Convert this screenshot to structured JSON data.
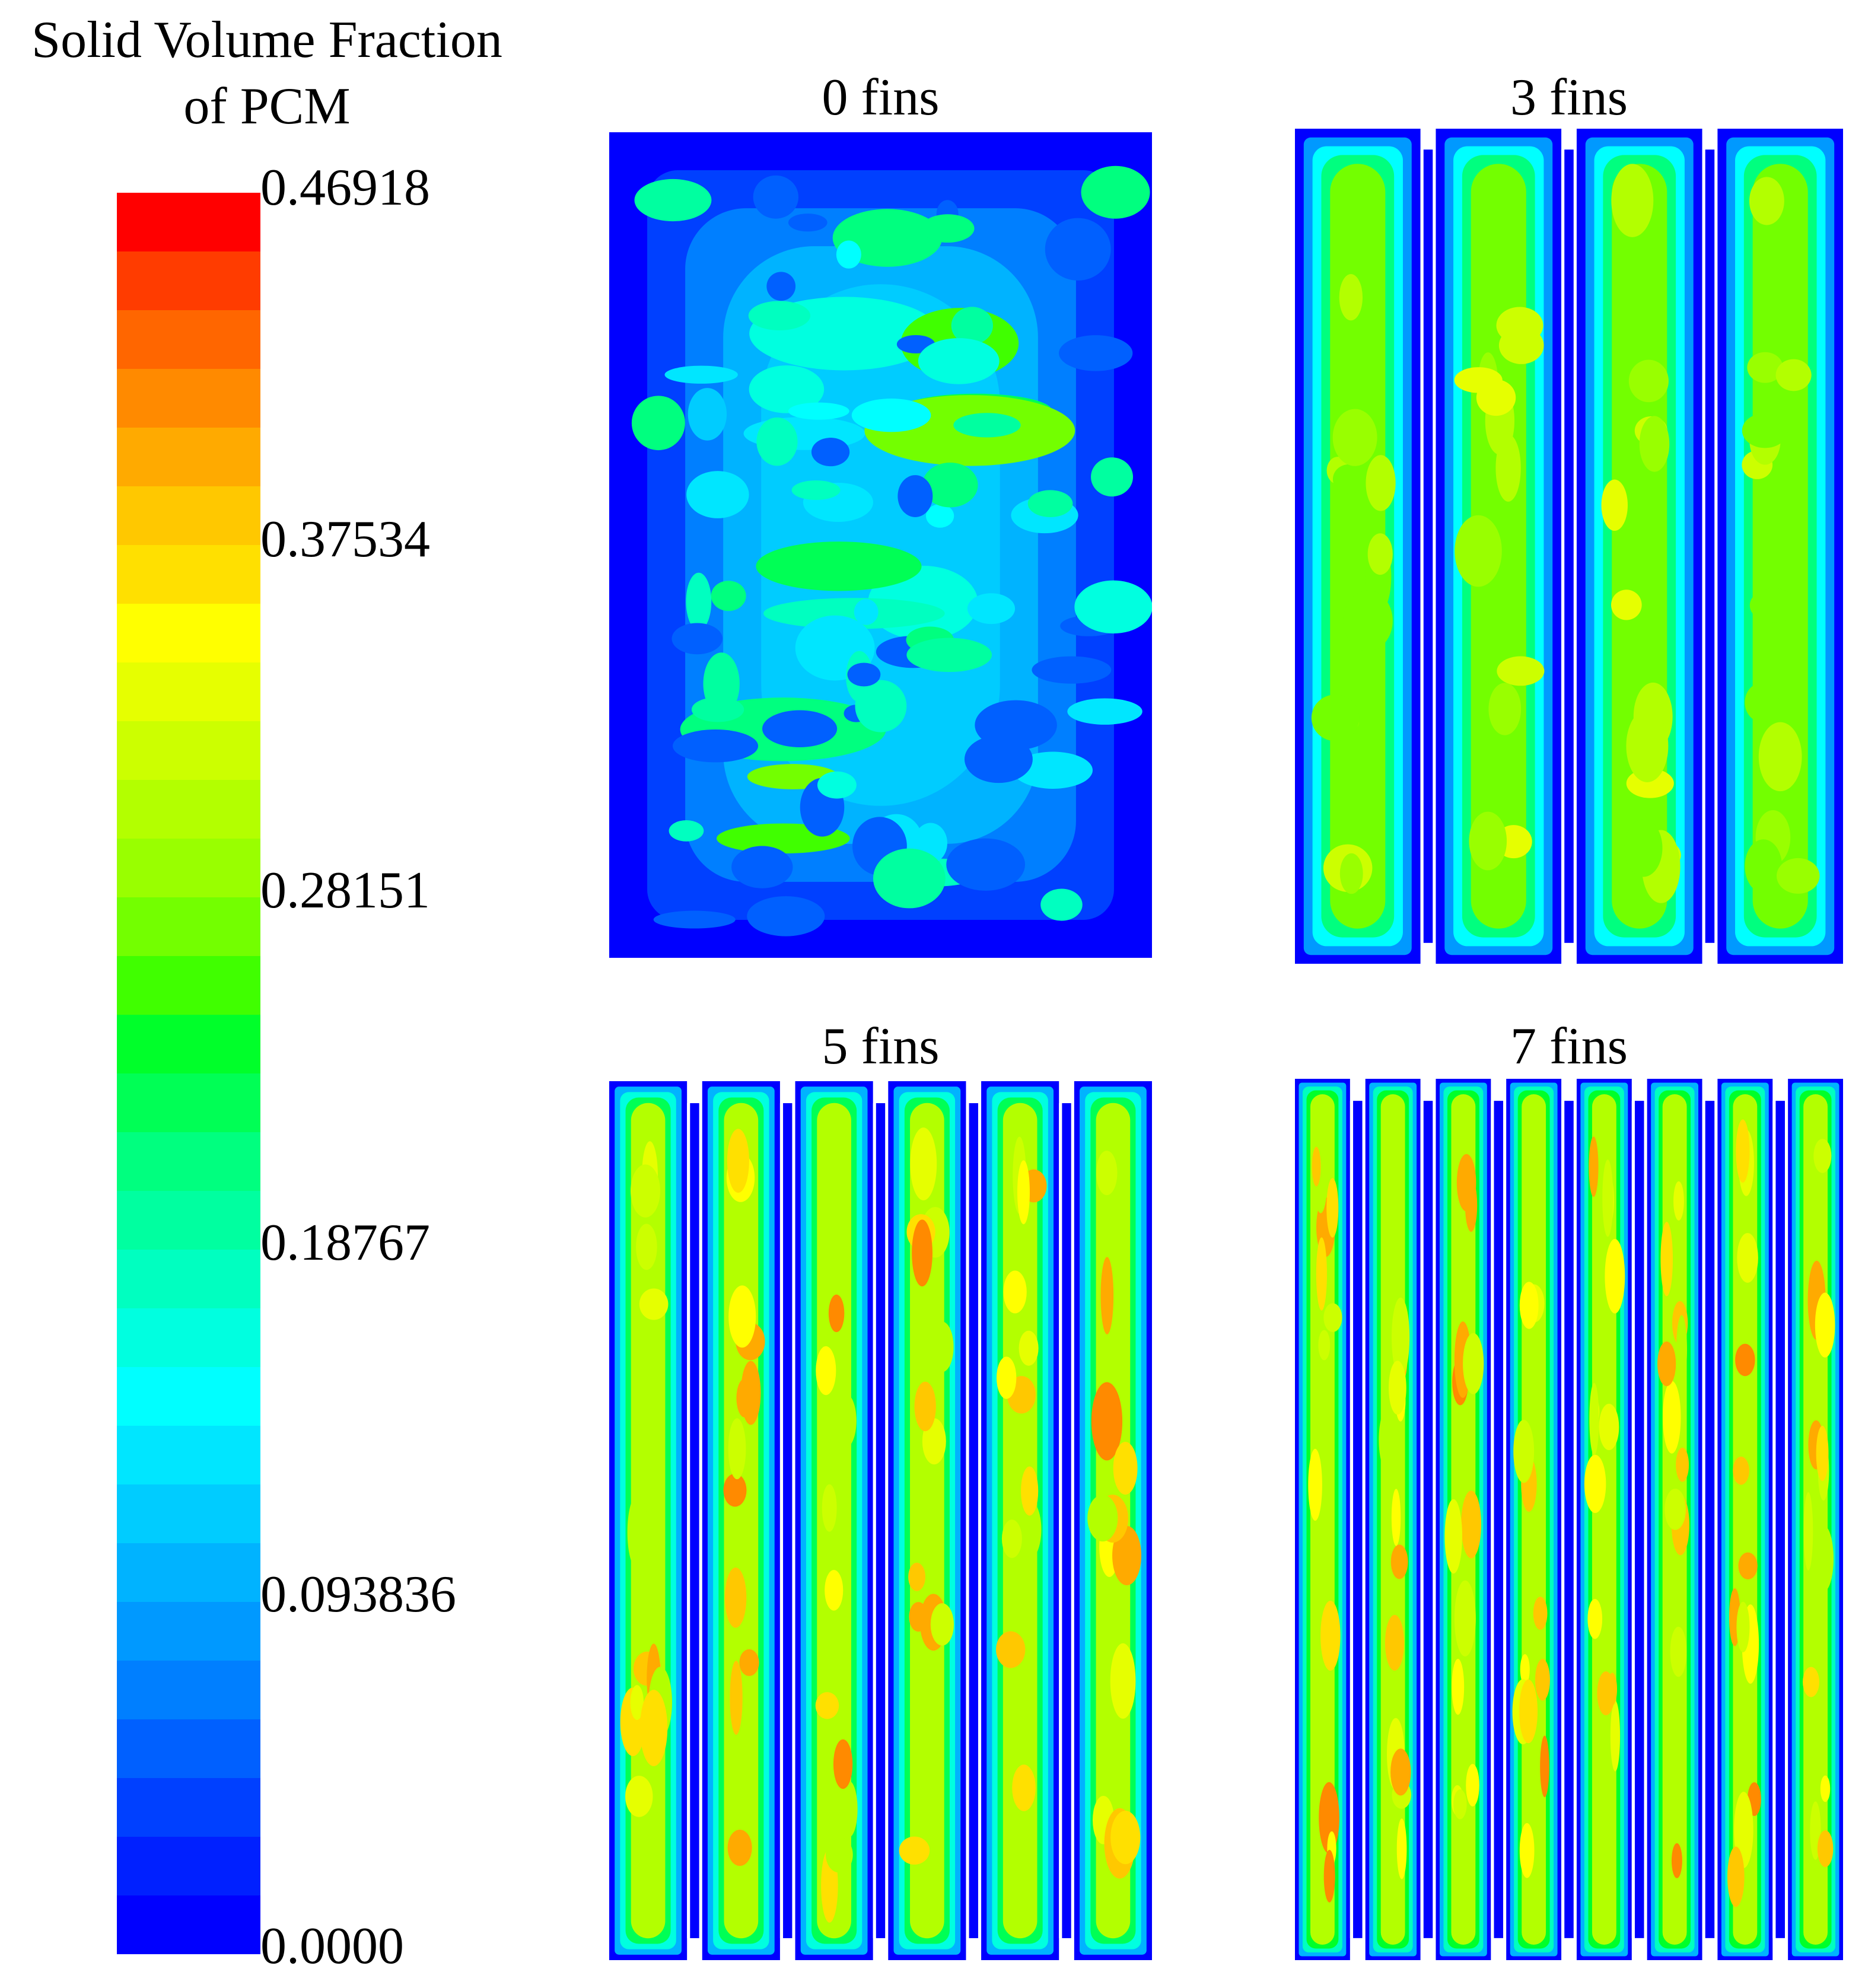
{
  "legend": {
    "title_line1": "Solid Volume Fraction",
    "title_line2": "of PCM",
    "ticks": [
      "0.46918",
      "0.37534",
      "0.28151",
      "0.18767",
      "0.093836",
      "0.0000"
    ],
    "band_colors": [
      "#ff0000",
      "#ff3c00",
      "#ff6600",
      "#ff8a00",
      "#ffaa00",
      "#ffc800",
      "#ffe000",
      "#ffff00",
      "#e6ff00",
      "#ccff00",
      "#b3ff00",
      "#99ff00",
      "#73ff00",
      "#40ff00",
      "#00ff2a",
      "#00ff55",
      "#00ff7f",
      "#00ffa0",
      "#00ffc0",
      "#00ffe0",
      "#00ffff",
      "#00e6ff",
      "#00ccff",
      "#00b3ff",
      "#0099ff",
      "#007fff",
      "#0060ff",
      "#0040ff",
      "#0020ff",
      "#0000ff"
    ]
  },
  "chart_data": {
    "type": "heatmap",
    "quantity": "Solid Volume Fraction of PCM",
    "colorscale_range": [
      0.0,
      0.46918
    ],
    "tick_values": [
      0.46918,
      0.37534,
      0.28151,
      0.18767,
      0.093836,
      0.0
    ],
    "panels": [
      {
        "title": "0 fins",
        "fins": 0,
        "channels": 1,
        "typical_core_value": 0.12,
        "max_value": 0.28
      },
      {
        "title": "3 fins",
        "fins": 3,
        "channels": 4,
        "typical_core_value": 0.27,
        "max_value": 0.34
      },
      {
        "title": "5 fins",
        "fins": 5,
        "channels": 6,
        "typical_core_value": 0.3,
        "max_value": 0.42
      },
      {
        "title": "7 fins",
        "fins": 7,
        "channels": 8,
        "typical_core_value": 0.31,
        "max_value": 0.42
      }
    ]
  }
}
